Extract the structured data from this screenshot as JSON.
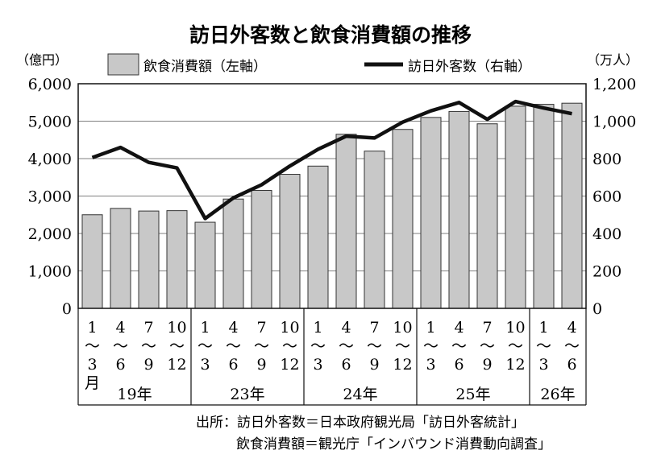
{
  "chart_data": {
    "type": "bar",
    "title": "訪日外客数と飲食消費額の推移",
    "left_unit": "（億円）",
    "right_unit": "（万人）",
    "left_ylim": [
      0,
      6000
    ],
    "right_ylim": [
      0,
      1200
    ],
    "left_ticks": [
      "6,000",
      "5,000",
      "4,000",
      "3,000",
      "2,000",
      "1,000",
      "0"
    ],
    "right_ticks": [
      "1,200",
      "1,000",
      "800",
      "600",
      "400",
      "200",
      "0"
    ],
    "grid": "horizontal",
    "legend_position": "top",
    "categories": [
      {
        "top": "1",
        "bottom": "3",
        "suffix": "月"
      },
      {
        "top": "4",
        "bottom": "6"
      },
      {
        "top": "7",
        "bottom": "9"
      },
      {
        "top": "10",
        "bottom": "12"
      },
      {
        "top": "1",
        "bottom": "3"
      },
      {
        "top": "4",
        "bottom": "6"
      },
      {
        "top": "7",
        "bottom": "9"
      },
      {
        "top": "10",
        "bottom": "12"
      },
      {
        "top": "1",
        "bottom": "3"
      },
      {
        "top": "4",
        "bottom": "6"
      },
      {
        "top": "7",
        "bottom": "9"
      },
      {
        "top": "10",
        "bottom": "12"
      },
      {
        "top": "1",
        "bottom": "3"
      },
      {
        "top": "4",
        "bottom": "6"
      },
      {
        "top": "7",
        "bottom": "9"
      },
      {
        "top": "10",
        "bottom": "12"
      },
      {
        "top": "1",
        "bottom": "3"
      },
      {
        "top": "4",
        "bottom": "6"
      }
    ],
    "tilde": "〜",
    "years": [
      {
        "label": "19年",
        "count": 4
      },
      {
        "label": "23年",
        "count": 4
      },
      {
        "label": "24年",
        "count": 4
      },
      {
        "label": "25年",
        "count": 4
      },
      {
        "label": "26年",
        "count": 2
      }
    ],
    "series": [
      {
        "name": "飲食消費額（左軸）",
        "type": "bar",
        "axis": "left",
        "color": "#c8c8c8",
        "values": [
          2500,
          2670,
          2600,
          2610,
          2300,
          2920,
          3150,
          3580,
          3800,
          4650,
          4200,
          4780,
          5100,
          5260,
          4930,
          5400,
          5450,
          5480
        ]
      },
      {
        "name": "訪日外客数（右軸）",
        "type": "line",
        "axis": "right",
        "color": "#111111",
        "values": [
          805,
          860,
          780,
          750,
          480,
          590,
          660,
          760,
          850,
          920,
          910,
          995,
          1055,
          1100,
          1010,
          1105,
          1070,
          1040
        ]
      }
    ],
    "source_lines": [
      "出所：訪日外客数＝日本政府観光局「訪日外客統計」",
      "飲食消費額＝観光庁「インバウンド消費動向調査」"
    ]
  }
}
